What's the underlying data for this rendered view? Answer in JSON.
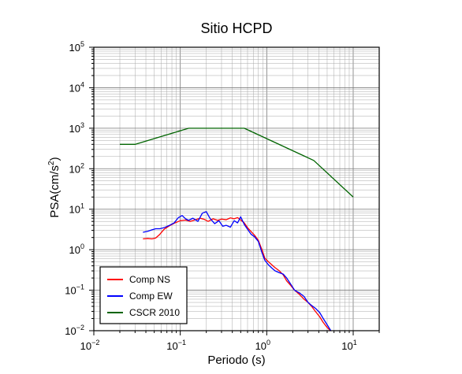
{
  "chart_data": {
    "type": "line",
    "title": "Sitio HCPD",
    "xlabel": "Periodo (s)",
    "ylabel_main": "PSA(cm/s",
    "ylabel_sup": "2",
    "ylabel_close": ")",
    "x_scale": "log",
    "y_scale": "log",
    "xlim": [
      0.01,
      20
    ],
    "ylim": [
      0.01,
      100000
    ],
    "x_ticks": [
      {
        "base": "10",
        "exp": "−2",
        "value": 0.01
      },
      {
        "base": "10",
        "exp": "−1",
        "value": 0.1
      },
      {
        "base": "10",
        "exp": "0",
        "value": 1
      },
      {
        "base": "10",
        "exp": "1",
        "value": 10
      }
    ],
    "y_ticks": [
      {
        "base": "10",
        "exp": "−2",
        "value": 0.01
      },
      {
        "base": "10",
        "exp": "−1",
        "value": 0.1
      },
      {
        "base": "10",
        "exp": "0",
        "value": 1
      },
      {
        "base": "10",
        "exp": "1",
        "value": 10
      },
      {
        "base": "10",
        "exp": "2",
        "value": 100
      },
      {
        "base": "10",
        "exp": "3",
        "value": 1000
      },
      {
        "base": "10",
        "exp": "4",
        "value": 10000
      },
      {
        "base": "10",
        "exp": "5",
        "value": 100000
      }
    ],
    "grid": true,
    "legend_position": "bottom-left",
    "series": [
      {
        "name": "Comp NS",
        "color": "#ff0000",
        "points": [
          [
            0.037,
            1.85
          ],
          [
            0.042,
            1.9
          ],
          [
            0.047,
            1.85
          ],
          [
            0.052,
            1.95
          ],
          [
            0.058,
            2.4
          ],
          [
            0.065,
            3.2
          ],
          [
            0.075,
            3.9
          ],
          [
            0.085,
            4.5
          ],
          [
            0.1,
            5.2
          ],
          [
            0.115,
            5.4
          ],
          [
            0.13,
            5.0
          ],
          [
            0.15,
            5.5
          ],
          [
            0.17,
            6.0
          ],
          [
            0.19,
            5.6
          ],
          [
            0.21,
            5.0
          ],
          [
            0.24,
            5.8
          ],
          [
            0.27,
            5.3
          ],
          [
            0.3,
            5.7
          ],
          [
            0.34,
            5.5
          ],
          [
            0.38,
            6.1
          ],
          [
            0.42,
            5.8
          ],
          [
            0.46,
            6.2
          ],
          [
            0.5,
            5.4
          ],
          [
            0.55,
            4.6
          ],
          [
            0.6,
            3.5
          ],
          [
            0.66,
            2.8
          ],
          [
            0.72,
            2.3
          ],
          [
            0.8,
            1.7
          ],
          [
            0.88,
            1.0
          ],
          [
            0.95,
            0.62
          ],
          [
            1.05,
            0.5
          ],
          [
            1.15,
            0.42
          ],
          [
            1.25,
            0.36
          ],
          [
            1.4,
            0.3
          ],
          [
            1.55,
            0.24
          ],
          [
            1.7,
            0.17
          ],
          [
            1.9,
            0.13
          ],
          [
            2.1,
            0.1
          ],
          [
            2.4,
            0.078
          ],
          [
            2.7,
            0.06
          ],
          [
            3.0,
            0.05
          ],
          [
            3.3,
            0.04
          ],
          [
            3.7,
            0.029
          ],
          [
            4.1,
            0.022
          ],
          [
            4.5,
            0.016
          ],
          [
            5.0,
            0.012
          ],
          [
            5.6,
            0.0095
          ]
        ]
      },
      {
        "name": "Comp EW",
        "color": "#0000ff",
        "points": [
          [
            0.037,
            2.7
          ],
          [
            0.042,
            2.85
          ],
          [
            0.047,
            3.1
          ],
          [
            0.052,
            3.3
          ],
          [
            0.058,
            3.3
          ],
          [
            0.065,
            3.5
          ],
          [
            0.075,
            4.0
          ],
          [
            0.085,
            4.6
          ],
          [
            0.095,
            6.2
          ],
          [
            0.105,
            7.0
          ],
          [
            0.115,
            5.8
          ],
          [
            0.125,
            5.3
          ],
          [
            0.14,
            6.0
          ],
          [
            0.16,
            5.0
          ],
          [
            0.18,
            8.0
          ],
          [
            0.2,
            8.7
          ],
          [
            0.22,
            6.0
          ],
          [
            0.25,
            4.4
          ],
          [
            0.28,
            5.2
          ],
          [
            0.31,
            3.8
          ],
          [
            0.34,
            4.0
          ],
          [
            0.38,
            3.6
          ],
          [
            0.42,
            5.2
          ],
          [
            0.46,
            4.6
          ],
          [
            0.5,
            6.5
          ],
          [
            0.55,
            4.2
          ],
          [
            0.6,
            3.2
          ],
          [
            0.66,
            2.4
          ],
          [
            0.72,
            2.1
          ],
          [
            0.8,
            1.6
          ],
          [
            0.88,
            0.85
          ],
          [
            0.95,
            0.55
          ],
          [
            1.05,
            0.42
          ],
          [
            1.15,
            0.35
          ],
          [
            1.25,
            0.3
          ],
          [
            1.4,
            0.27
          ],
          [
            1.55,
            0.25
          ],
          [
            1.7,
            0.2
          ],
          [
            1.9,
            0.14
          ],
          [
            2.1,
            0.1
          ],
          [
            2.4,
            0.085
          ],
          [
            2.7,
            0.07
          ],
          [
            3.0,
            0.05
          ],
          [
            3.3,
            0.042
          ],
          [
            3.7,
            0.035
          ],
          [
            4.1,
            0.028
          ],
          [
            4.5,
            0.02
          ],
          [
            5.0,
            0.014
          ],
          [
            5.6,
            0.0095
          ]
        ]
      },
      {
        "name": "CSCR 2010",
        "color": "#006400",
        "points": [
          [
            0.02,
            400
          ],
          [
            0.03,
            400
          ],
          [
            0.125,
            1000
          ],
          [
            0.55,
            1000
          ],
          [
            3.5,
            160
          ],
          [
            10,
            20
          ]
        ]
      }
    ]
  }
}
